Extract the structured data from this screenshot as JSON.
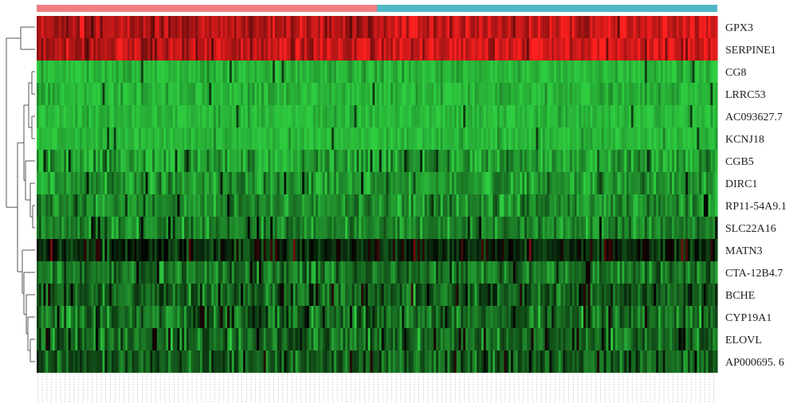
{
  "chart_data": {
    "type": "heatmap",
    "title": "",
    "xlabel": "",
    "ylabel": "",
    "legend": "none",
    "grid": false,
    "colors": {
      "low": "#2ecc40",
      "mid": "#000000",
      "high": "#ff2020",
      "group_a": "#f08080",
      "group_b": "#4fb8c6",
      "dendrogram": "#555555"
    },
    "groups": [
      {
        "fraction_of_samples": 0.5,
        "color": "#f08080"
      },
      {
        "fraction_of_samples": 0.5,
        "color": "#4fb8c6"
      }
    ],
    "row_labels": [
      "GPX3",
      "SERPINE1",
      "CG8",
      "LRRC53",
      "AC093627.7",
      "KCNJ18",
      "CGB5",
      "DIRC1",
      "RP11-54A9.1",
      "SLC22A16",
      "MATN3",
      "CTA-12B4.7",
      "BCHE",
      "CYP19A1",
      "ELOVL",
      "AP000695. 6"
    ],
    "row_mean_levels": [
      0.68,
      0.74,
      -0.9,
      -0.88,
      -0.9,
      -0.9,
      -0.78,
      -0.72,
      -0.65,
      -0.65,
      -0.15,
      -0.55,
      -0.45,
      -0.5,
      -0.5,
      -0.45
    ],
    "row_variability": [
      0.15,
      0.15,
      0.1,
      0.1,
      0.08,
      0.08,
      0.18,
      0.15,
      0.15,
      0.15,
      0.18,
      0.17,
      0.2,
      0.2,
      0.2,
      0.18
    ],
    "n_samples": 300,
    "value_range": [
      -1,
      1
    ]
  }
}
